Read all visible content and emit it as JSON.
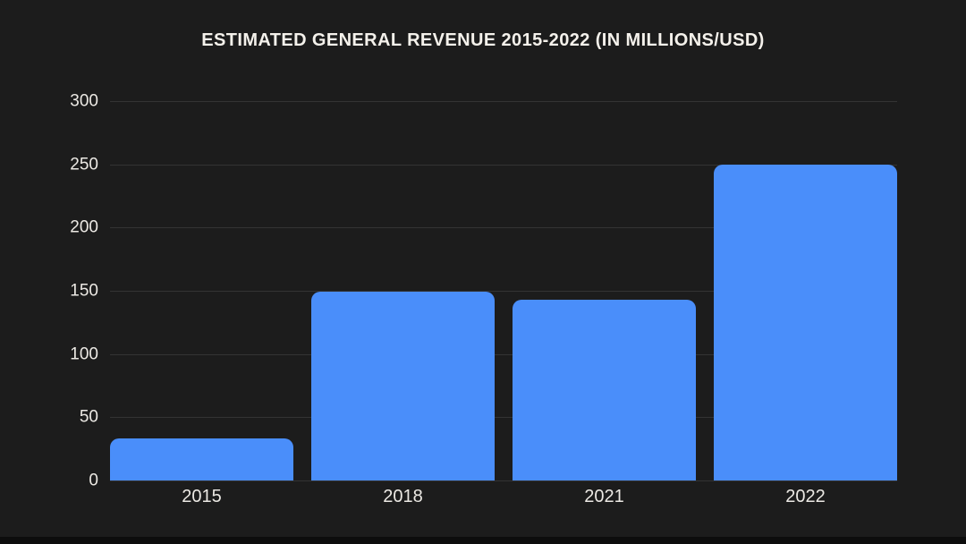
{
  "title": "ESTIMATED GENERAL REVENUE 2015-2022 (IN MILLIONS/USD)",
  "colors": {
    "background": "#1c1c1c",
    "bar": "#4a8efa",
    "grid": "#333333",
    "text": "#ece9e4",
    "title": "#f4f1eb",
    "bottom_edge": "#0d0d0d"
  },
  "chart_data": {
    "type": "bar",
    "title": "ESTIMATED GENERAL REVENUE 2015-2022 (IN MILLIONS/USD)",
    "categories": [
      "2015",
      "2018",
      "2021",
      "2022"
    ],
    "values": [
      33,
      149,
      143,
      250
    ],
    "xlabel": "",
    "ylabel": "",
    "ylim": [
      0,
      300
    ],
    "yticks": [
      0,
      50,
      100,
      150,
      200,
      250,
      300
    ],
    "grid": true,
    "legend": false
  }
}
